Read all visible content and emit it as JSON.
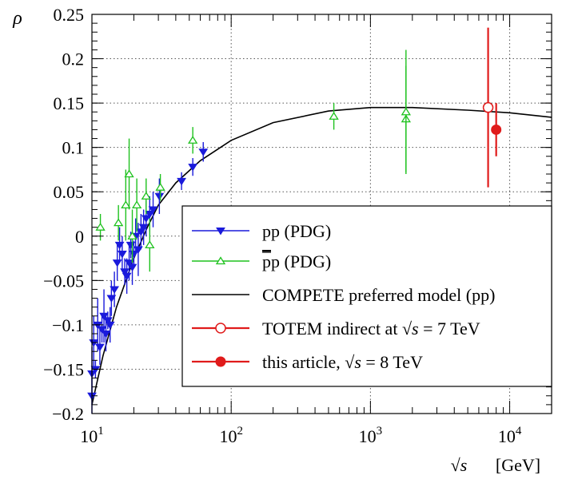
{
  "chart_data": {
    "type": "scatter",
    "title": "",
    "xlabel": "√s   [GeV]",
    "xlabel_main": "√s",
    "xlabel_unit": "[GeV]",
    "ylabel": "ρ",
    "x_scale": "log",
    "xlim": [
      10,
      20000
    ],
    "ylim": [
      -0.2,
      0.25
    ],
    "grid": true,
    "legend_position": "lower-right",
    "y_ticks": [
      {
        "value": -0.2,
        "label": "−0.2"
      },
      {
        "value": -0.15,
        "label": "−0.15"
      },
      {
        "value": -0.1,
        "label": "−0.1"
      },
      {
        "value": -0.05,
        "label": "−0.05"
      },
      {
        "value": 0,
        "label": "0"
      },
      {
        "value": 0.05,
        "label": "0.05"
      },
      {
        "value": 0.1,
        "label": "0.1"
      },
      {
        "value": 0.15,
        "label": "0.15"
      },
      {
        "value": 0.2,
        "label": "0.2"
      },
      {
        "value": 0.25,
        "label": "0.25"
      }
    ],
    "x_ticks": [
      {
        "value": 10,
        "base": "10",
        "exp": "1"
      },
      {
        "value": 100,
        "base": "10",
        "exp": "2"
      },
      {
        "value": 1000,
        "base": "10",
        "exp": "3"
      },
      {
        "value": 10000,
        "base": "10",
        "exp": "4"
      }
    ],
    "series": [
      {
        "name": "pp (PDG)",
        "color": "#1a1adb",
        "marker": "triangle-down-filled",
        "points": [
          {
            "x": 10.0,
            "y": -0.155,
            "err": 0.03
          },
          {
            "x": 10.0,
            "y": -0.18,
            "err": 0.02
          },
          {
            "x": 10.3,
            "y": -0.12,
            "err": 0.03
          },
          {
            "x": 10.6,
            "y": -0.15,
            "err": 0.01
          },
          {
            "x": 11.0,
            "y": -0.1,
            "err": 0.03
          },
          {
            "x": 11.4,
            "y": -0.125,
            "err": 0.02
          },
          {
            "x": 11.8,
            "y": -0.105,
            "err": 0.015
          },
          {
            "x": 12.2,
            "y": -0.09,
            "err": 0.03
          },
          {
            "x": 12.6,
            "y": -0.11,
            "err": 0.02
          },
          {
            "x": 13.0,
            "y": -0.095,
            "err": 0.01
          },
          {
            "x": 13.5,
            "y": -0.1,
            "err": 0.02
          },
          {
            "x": 13.8,
            "y": -0.07,
            "err": 0.02
          },
          {
            "x": 14.5,
            "y": -0.06,
            "err": 0.02
          },
          {
            "x": 15.2,
            "y": -0.03,
            "err": 0.02
          },
          {
            "x": 15.8,
            "y": -0.01,
            "err": 0.02
          },
          {
            "x": 16.5,
            "y": -0.02,
            "err": 0.02
          },
          {
            "x": 17.2,
            "y": -0.04,
            "err": 0.015
          },
          {
            "x": 17.8,
            "y": -0.045,
            "err": 0.02
          },
          {
            "x": 18.5,
            "y": -0.03,
            "err": 0.02
          },
          {
            "x": 19.0,
            "y": -0.01,
            "err": 0.015
          },
          {
            "x": 19.5,
            "y": -0.035,
            "err": 0.02
          },
          {
            "x": 20.0,
            "y": -0.02,
            "err": 0.015
          },
          {
            "x": 20.6,
            "y": 0.0,
            "err": 0.02
          },
          {
            "x": 21.5,
            "y": -0.015,
            "err": 0.03
          },
          {
            "x": 22.5,
            "y": 0.005,
            "err": 0.02
          },
          {
            "x": 23.5,
            "y": 0.01,
            "err": 0.02
          },
          {
            "x": 24.5,
            "y": 0.02,
            "err": 0.02
          },
          {
            "x": 26.0,
            "y": 0.025,
            "err": 0.02
          },
          {
            "x": 27.5,
            "y": 0.03,
            "err": 0.02
          },
          {
            "x": 30.5,
            "y": 0.045,
            "err": 0.02
          },
          {
            "x": 44.0,
            "y": 0.062,
            "err": 0.01
          },
          {
            "x": 53.0,
            "y": 0.078,
            "err": 0.01
          },
          {
            "x": 63.0,
            "y": 0.095,
            "err": 0.011
          }
        ]
      },
      {
        "name": "p̄p (PDG)",
        "label_bar": "p",
        "label_rest": "p (PDG)",
        "color": "#1fc21f",
        "marker": "triangle-up-open",
        "points": [
          {
            "x": 11.5,
            "y": 0.01,
            "err": 0.015
          },
          {
            "x": 15.5,
            "y": 0.015,
            "err": 0.02
          },
          {
            "x": 17.5,
            "y": 0.035,
            "err": 0.04
          },
          {
            "x": 18.5,
            "y": 0.07,
            "err": 0.04
          },
          {
            "x": 19.5,
            "y": 0.0,
            "err": 0.03
          },
          {
            "x": 21.0,
            "y": 0.035,
            "err": 0.03
          },
          {
            "x": 24.5,
            "y": 0.045,
            "err": 0.02
          },
          {
            "x": 26.0,
            "y": -0.01,
            "err": 0.03
          },
          {
            "x": 31.0,
            "y": 0.055,
            "err": 0.015
          },
          {
            "x": 53.0,
            "y": 0.108,
            "err": 0.015
          },
          {
            "x": 546.0,
            "y": 0.135,
            "err": 0.015
          },
          {
            "x": 1800.0,
            "y": 0.132,
            "err": 0.06
          },
          {
            "x": 1800.0,
            "y": 0.14,
            "err": 0.07
          }
        ]
      },
      {
        "name": "COMPETE preferred model (pp)",
        "color": "#000000",
        "type": "curve",
        "points": [
          {
            "x": 10,
            "y": -0.19
          },
          {
            "x": 12,
            "y": -0.135
          },
          {
            "x": 15,
            "y": -0.08
          },
          {
            "x": 20,
            "y": -0.025
          },
          {
            "x": 25,
            "y": 0.01
          },
          {
            "x": 30,
            "y": 0.035
          },
          {
            "x": 40,
            "y": 0.06
          },
          {
            "x": 60,
            "y": 0.085
          },
          {
            "x": 100,
            "y": 0.108
          },
          {
            "x": 200,
            "y": 0.128
          },
          {
            "x": 500,
            "y": 0.141
          },
          {
            "x": 1000,
            "y": 0.145
          },
          {
            "x": 2000,
            "y": 0.145
          },
          {
            "x": 5000,
            "y": 0.142
          },
          {
            "x": 10000,
            "y": 0.139
          },
          {
            "x": 20000,
            "y": 0.134
          }
        ]
      },
      {
        "name": "TOTEM indirect at √s = 7 TeV",
        "label_pre": "TOTEM indirect at ",
        "label_post": " = 7 TeV",
        "color": "#e01b1b",
        "marker": "circle-open",
        "points": [
          {
            "x": 7000,
            "y": 0.145,
            "err_plus": 0.09,
            "err_minus": 0.09
          }
        ]
      },
      {
        "name": "this article, √s = 8 TeV",
        "label_pre": "this article, ",
        "label_post": " = 8 TeV",
        "color": "#e01b1b",
        "marker": "circle-filled",
        "points": [
          {
            "x": 8000,
            "y": 0.12,
            "err_plus": 0.03,
            "err_minus": 0.03
          }
        ]
      }
    ]
  }
}
